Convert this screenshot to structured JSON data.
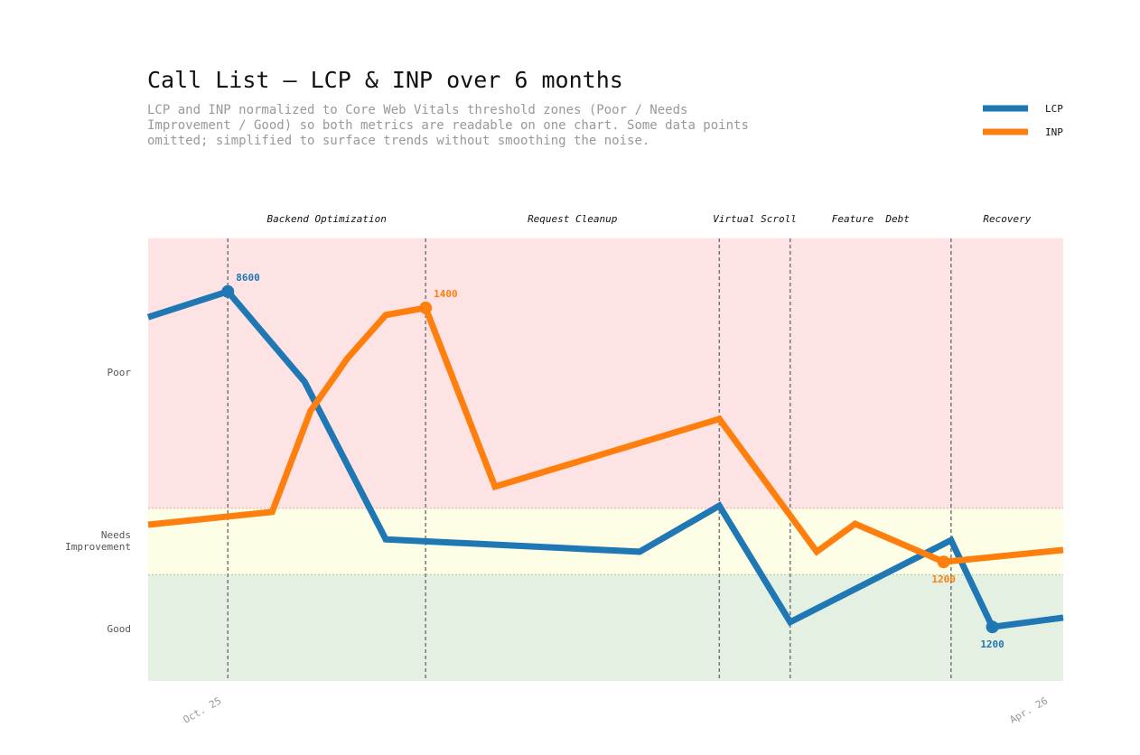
{
  "chart_data": {
    "type": "line",
    "title": "Call List — LCP & INP over 6 months",
    "subtitle": "LCP and INP normalized to Core Web Vitals threshold zones (Poor / Needs Improvement / Good) so both metrics are readable on one chart. Some data points omitted; simplified to surface trends without smoothing the noise.",
    "xlim": [
      0,
      6.2
    ],
    "xticks": [
      {
        "value": 0.5,
        "label": "Oct. 25"
      },
      {
        "value": 6.1,
        "label": "Apr. 26"
      }
    ],
    "ylim": [
      0,
      100
    ],
    "yticks": [
      {
        "value": 11.8,
        "label": "Good"
      },
      {
        "value": 31.6,
        "label": "Needs Improvement"
      },
      {
        "value": 69.6,
        "label": "Poor"
      }
    ],
    "zones": [
      {
        "from": 0,
        "to": 24,
        "color": "#e4f0e2",
        "edge": "#9fcf9a"
      },
      {
        "from": 24,
        "to": 39,
        "color": "#fefee6",
        "edge": "#d8b0a8"
      },
      {
        "from": 39,
        "to": 100,
        "color": "#fde3e3",
        "edge": "#fde3e3"
      }
    ],
    "phases": [
      {
        "label": "Backend Optimization",
        "start": 0.54,
        "end": 1.88
      },
      {
        "label": "Request Cleanup",
        "start": 1.88,
        "end": 3.87
      },
      {
        "label": "Virtual Scroll",
        "start": 3.87,
        "end": 4.35
      },
      {
        "label": "Feature  Debt",
        "start": 4.35,
        "end": 5.44
      },
      {
        "label": "Recovery",
        "start": 5.44,
        "end": 6.2
      }
    ],
    "legend": "top-right",
    "series": [
      {
        "name": "LCP",
        "color": "#1f77b4",
        "x": [
          0,
          0.54,
          1.06,
          1.61,
          3.33,
          3.87,
          4.35,
          5.44,
          5.72,
          6.2
        ],
        "values": [
          82.2,
          88.0,
          67.6,
          32.0,
          29.2,
          39.6,
          13.3,
          31.8,
          12.2,
          14.3
        ],
        "annotations": [
          {
            "index": 1,
            "label": "8600",
            "position": "above"
          },
          {
            "index": 8,
            "label": "1200",
            "position": "below"
          }
        ]
      },
      {
        "name": "INP",
        "color": "#ff7f0e",
        "x": [
          0,
          0.84,
          1.1,
          1.35,
          1.61,
          1.88,
          2.35,
          3.87,
          4.53,
          4.79,
          5.39,
          6.2
        ],
        "values": [
          35.3,
          38.2,
          61.0,
          72.9,
          82.7,
          84.3,
          43.9,
          59.2,
          29.2,
          35.5,
          26.9,
          29.6
        ],
        "annotations": [
          {
            "index": 5,
            "label": "1400",
            "position": "above"
          },
          {
            "index": 10,
            "label": "1200",
            "position": "below"
          }
        ]
      }
    ]
  }
}
